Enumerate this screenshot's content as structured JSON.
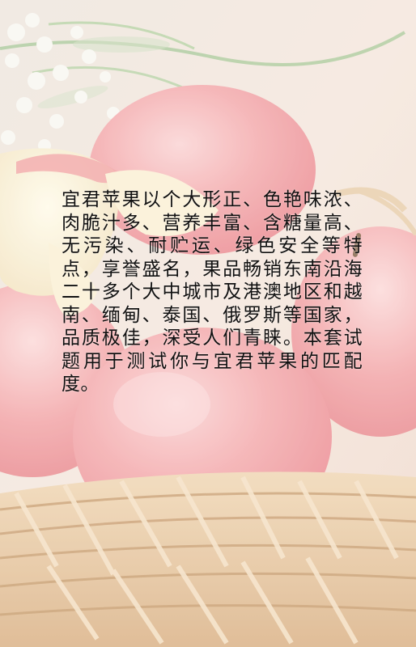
{
  "intro": {
    "text": "宜君苹果以个大形正、色艳味浓、肉脆汁多、营养丰富、含糖量高、无污染、耐贮运、绿色安全等特点，享誉盛名，果品畅销东南沿海二十多个大中城市及港澳地区和越南、缅甸、泰国、俄罗斯等国家，品质极佳，深受人们青睐。本套试题用于测试你与宜君苹果的匹配度。"
  },
  "colors": {
    "background": "#f3e6dc",
    "apple": "#f2a2a6",
    "apple_flesh": "#fbf3df",
    "basket": "#e8cba6",
    "text": "#111111"
  }
}
